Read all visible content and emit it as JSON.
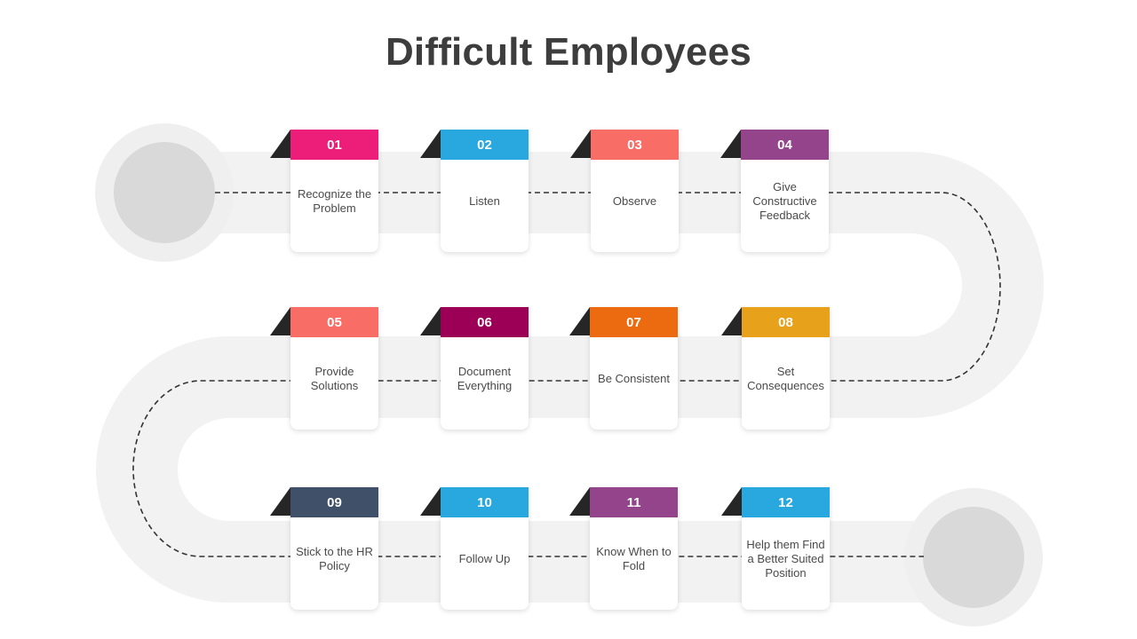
{
  "title": "Difficult Employees",
  "colors": {
    "road": "#f2f2f2",
    "endpoint_outer": "#efefef",
    "endpoint_inner": "#d9d9d9",
    "dash": "#333333",
    "fold": "#262626"
  },
  "steps": [
    {
      "number": "01",
      "label": "Recognize the Problem",
      "color": "#ec1e79"
    },
    {
      "number": "02",
      "label": "Listen",
      "color": "#29a8df"
    },
    {
      "number": "03",
      "label": "Observe",
      "color": "#f96d67"
    },
    {
      "number": "04",
      "label": "Give Constructive Feedback",
      "color": "#93448a"
    },
    {
      "number": "05",
      "label": "Provide Solutions",
      "color": "#f96d67"
    },
    {
      "number": "06",
      "label": "Document Everything",
      "color": "#9c0056"
    },
    {
      "number": "07",
      "label": "Be Consistent",
      "color": "#ed6b10"
    },
    {
      "number": "08",
      "label": "Set Consequences",
      "color": "#e8a11a"
    },
    {
      "number": "09",
      "label": "Stick to the HR Policy",
      "color": "#3f5068"
    },
    {
      "number": "10",
      "label": "Follow Up",
      "color": "#29a8df"
    },
    {
      "number": "11",
      "label": "Know When to Fold",
      "color": "#93448a"
    },
    {
      "number": "12",
      "label": "Help them Find a Better Suited Position",
      "color": "#29a8df"
    }
  ]
}
